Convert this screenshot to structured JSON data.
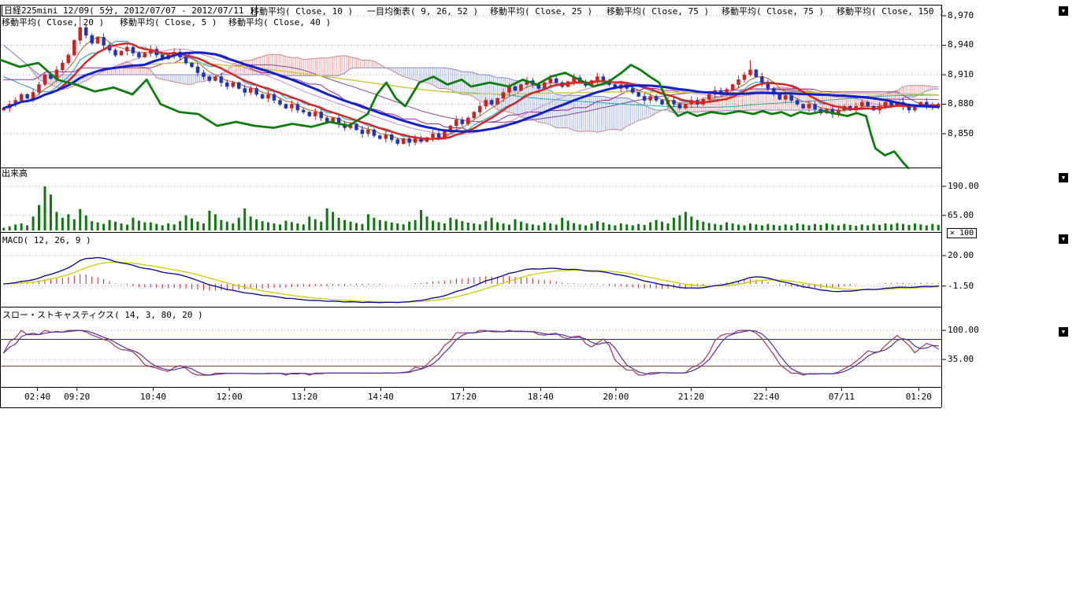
{
  "header": {
    "title": "日経225mini 12/09( 5分, 2012/07/07 - 2012/07/11 )",
    "row1_indicators": [
      "移動平均( Close, 10 )",
      "一目均衡表( 9, 26, 52 )",
      "移動平均( Close, 25 )",
      "移動平均( Close, 75 )",
      "移動平均( Close, 75 )",
      "移動平均( Close, 150 )"
    ],
    "row2_indicators": [
      "移動平均( Close, 20 )",
      "移動平均( Close, 5 )",
      "移動平均( Close, 40 )"
    ]
  },
  "panels": {
    "volume": {
      "title": "出来高",
      "axis_labels": [
        "190.00",
        "65.00"
      ],
      "unit_badge": "× 100"
    },
    "macd": {
      "title": "MACD( 12, 26, 9 )",
      "axis_labels": [
        "20.00",
        "-1.50"
      ]
    },
    "stoch": {
      "title": "スロー・ストキャスティクス( 14, 3, 80, 20 )",
      "axis_labels": [
        "100.00",
        "35.00"
      ]
    }
  },
  "price_axis_labels": [
    "8,970",
    "8,940",
    "8,910",
    "8,880",
    "8,850"
  ],
  "x_axis": {
    "labels": [
      "02:40",
      "09:20",
      "10:40",
      "12:00",
      "13:20",
      "14:40",
      "17:20",
      "18:40",
      "20:00",
      "21:20",
      "22:40",
      "07/11",
      "01:20"
    ],
    "fracs": [
      0.039,
      0.081,
      0.162,
      0.243,
      0.323,
      0.404,
      0.492,
      0.574,
      0.654,
      0.734,
      0.814,
      0.894,
      0.976
    ]
  },
  "icons": {
    "panel_scroll": "▼"
  },
  "colors": {
    "up_candle": "#cc2222",
    "down_candle": "#2233bb",
    "volume_bar": "#117711",
    "thick_red_ma": "#dd2222",
    "thick_blue_ma": "#1122cc",
    "green_line": "#0e7d0e",
    "macd_line": "#000099",
    "macd_signal": "#cccc00",
    "macd_hist": "#cc2222",
    "stoch_k": "#aa3355",
    "stoch_d": "#4433aa",
    "stoch_ref_high": "#2222aa",
    "stoch_ref_low": "#883333",
    "cloud_red": "#dd5555",
    "cloud_blue": "#5577cc"
  },
  "chart_data": {
    "type": "candlestick",
    "title": "日経225mini 12/09",
    "interval": "5分",
    "date_range": "2012/07/07 - 2012/07/11",
    "overlays": [
      "MA5",
      "MA10",
      "MA20",
      "MA25",
      "MA40",
      "MA75",
      "MA75",
      "MA150",
      "一目均衡表(9,26,52)"
    ],
    "price_axis": {
      "ticks": [
        8970,
        8940,
        8910,
        8880,
        8850
      ]
    },
    "first_open": 8874,
    "close": [
      8876,
      8880,
      8884,
      8890,
      8886,
      8892,
      8900,
      8910,
      8906,
      8915,
      8922,
      8930,
      8945,
      8958,
      8950,
      8942,
      8948,
      8940,
      8935,
      8930,
      8934,
      8938,
      8932,
      8928,
      8932,
      8936,
      8930,
      8926,
      8930,
      8933,
      8928,
      8922,
      8918,
      8912,
      8908,
      8904,
      8908,
      8902,
      8898,
      8902,
      8896,
      8892,
      8896,
      8890,
      8886,
      8890,
      8884,
      8880,
      8876,
      8880,
      8874,
      8872,
      8868,
      8872,
      8866,
      8862,
      8866,
      8860,
      8856,
      8860,
      8854,
      8850,
      8854,
      8848,
      8845,
      8849,
      8844,
      8840,
      8845,
      8841,
      8846,
      8842,
      8846,
      8850,
      8846,
      8852,
      8858,
      8864,
      8860,
      8866,
      8872,
      8878,
      8884,
      8880,
      8886,
      8892,
      8898,
      8894,
      8900,
      8904,
      8900,
      8896,
      8902,
      8906,
      8902,
      8898,
      8903,
      8907,
      8903,
      8899,
      8904,
      8908,
      8904,
      8900,
      8896,
      8900,
      8896,
      8892,
      8888,
      8884,
      8888,
      8884,
      8880,
      8884,
      8880,
      8876,
      8880,
      8884,
      8880,
      8885,
      8890,
      8894,
      8890,
      8895,
      8900,
      8905,
      8910,
      8915,
      8908,
      8902,
      8896,
      8890,
      8885,
      8889,
      8884,
      8880,
      8876,
      8880,
      8875,
      8871,
      8875,
      8870,
      8874,
      8878,
      8874,
      8878,
      8882,
      8878,
      8874,
      8878,
      8882,
      8878,
      8882,
      8878,
      8874,
      8878,
      8882,
      8879,
      8877,
      8880
    ],
    "wick_boost": {
      "13": 12,
      "127": 8
    },
    "pre_window_close_estimate": [
      8960,
      8950,
      8940,
      8930,
      8920,
      8910,
      8900,
      8890,
      8880,
      8870,
      8860,
      8865,
      8875,
      8885,
      8895,
      8905,
      8915,
      8925,
      8935,
      8945,
      8950,
      8945,
      8940,
      8935,
      8930,
      8925,
      8920,
      8915,
      8910,
      8905
    ],
    "green_line": [
      [
        0.0,
        8925
      ],
      [
        0.02,
        8918
      ],
      [
        0.04,
        8922
      ],
      [
        0.06,
        8905
      ],
      [
        0.08,
        8900
      ],
      [
        0.1,
        8893
      ],
      [
        0.12,
        8897
      ],
      [
        0.14,
        8890
      ],
      [
        0.155,
        8905
      ],
      [
        0.17,
        8880
      ],
      [
        0.19,
        8872
      ],
      [
        0.21,
        8870
      ],
      [
        0.23,
        8858
      ],
      [
        0.25,
        8862
      ],
      [
        0.27,
        8858
      ],
      [
        0.29,
        8856
      ],
      [
        0.31,
        8860
      ],
      [
        0.33,
        8857
      ],
      [
        0.35,
        8862
      ],
      [
        0.37,
        8858
      ],
      [
        0.39,
        8870
      ],
      [
        0.4,
        8890
      ],
      [
        0.41,
        8902
      ],
      [
        0.42,
        8886
      ],
      [
        0.43,
        8878
      ],
      [
        0.445,
        8902
      ],
      [
        0.46,
        8908
      ],
      [
        0.475,
        8900
      ],
      [
        0.49,
        8905
      ],
      [
        0.5,
        8898
      ],
      [
        0.52,
        8902
      ],
      [
        0.54,
        8898
      ],
      [
        0.555,
        8905
      ],
      [
        0.57,
        8900
      ],
      [
        0.585,
        8908
      ],
      [
        0.6,
        8912
      ],
      [
        0.615,
        8905
      ],
      [
        0.63,
        8898
      ],
      [
        0.645,
        8902
      ],
      [
        0.66,
        8912
      ],
      [
        0.67,
        8920
      ],
      [
        0.68,
        8915
      ],
      [
        0.69,
        8908
      ],
      [
        0.7,
        8902
      ],
      [
        0.71,
        8880
      ],
      [
        0.72,
        8868
      ],
      [
        0.73,
        8872
      ],
      [
        0.74,
        8868
      ],
      [
        0.755,
        8872
      ],
      [
        0.77,
        8870
      ],
      [
        0.785,
        8873
      ],
      [
        0.8,
        8870
      ],
      [
        0.81,
        8873
      ],
      [
        0.82,
        8870
      ],
      [
        0.83,
        8872
      ],
      [
        0.84,
        8868
      ],
      [
        0.85,
        8872
      ],
      [
        0.86,
        8870
      ],
      [
        0.875,
        8873
      ],
      [
        0.89,
        8870
      ],
      [
        0.9,
        8868
      ],
      [
        0.91,
        8871
      ],
      [
        0.92,
        8868
      ],
      [
        0.925,
        8850
      ],
      [
        0.93,
        8835
      ],
      [
        0.94,
        8828
      ],
      [
        0.95,
        8832
      ],
      [
        0.96,
        8820
      ],
      [
        0.965,
        8815
      ]
    ],
    "volume": {
      "unit": "×100",
      "axis_ticks": [
        190,
        65
      ],
      "values": [
        12,
        18,
        25,
        30,
        22,
        60,
        110,
        190,
        155,
        80,
        55,
        70,
        48,
        92,
        65,
        40,
        35,
        28,
        45,
        38,
        30,
        25,
        55,
        42,
        35,
        35,
        28,
        22,
        30,
        26,
        40,
        65,
        52,
        38,
        30,
        85,
        70,
        45,
        38,
        30,
        55,
        95,
        60,
        48,
        40,
        35,
        30,
        26,
        42,
        36,
        30,
        26,
        60,
        48,
        38,
        95,
        80,
        55,
        45,
        38,
        32,
        28,
        70,
        55,
        45,
        40,
        34,
        30,
        26,
        38,
        45,
        88,
        60,
        42,
        36,
        30,
        55,
        48,
        40,
        34,
        30,
        26,
        40,
        55,
        35,
        30,
        25,
        48,
        38,
        30,
        26,
        22,
        35,
        30,
        25,
        55,
        42,
        32,
        26,
        22,
        30,
        40,
        34,
        26,
        22,
        30,
        26,
        22,
        28,
        24,
        35,
        45,
        38,
        30,
        55,
        65,
        80,
        60,
        45,
        38,
        32,
        28,
        24,
        35,
        30,
        25,
        22,
        30,
        26,
        22,
        28,
        24,
        20,
        26,
        22,
        30,
        26,
        22,
        28,
        24,
        30,
        26,
        22,
        28,
        24,
        20,
        26,
        22,
        28,
        24,
        30,
        26,
        32,
        28,
        24,
        30,
        26,
        22,
        28,
        24
      ]
    },
    "macd": {
      "params": [
        12,
        26,
        9
      ],
      "axis_ticks": [
        20,
        -1.5
      ]
    },
    "stochastics": {
      "params": [
        14,
        3,
        80,
        20
      ],
      "axis_ticks": [
        100,
        35
      ],
      "ref_lines": [
        80,
        20
      ]
    }
  }
}
